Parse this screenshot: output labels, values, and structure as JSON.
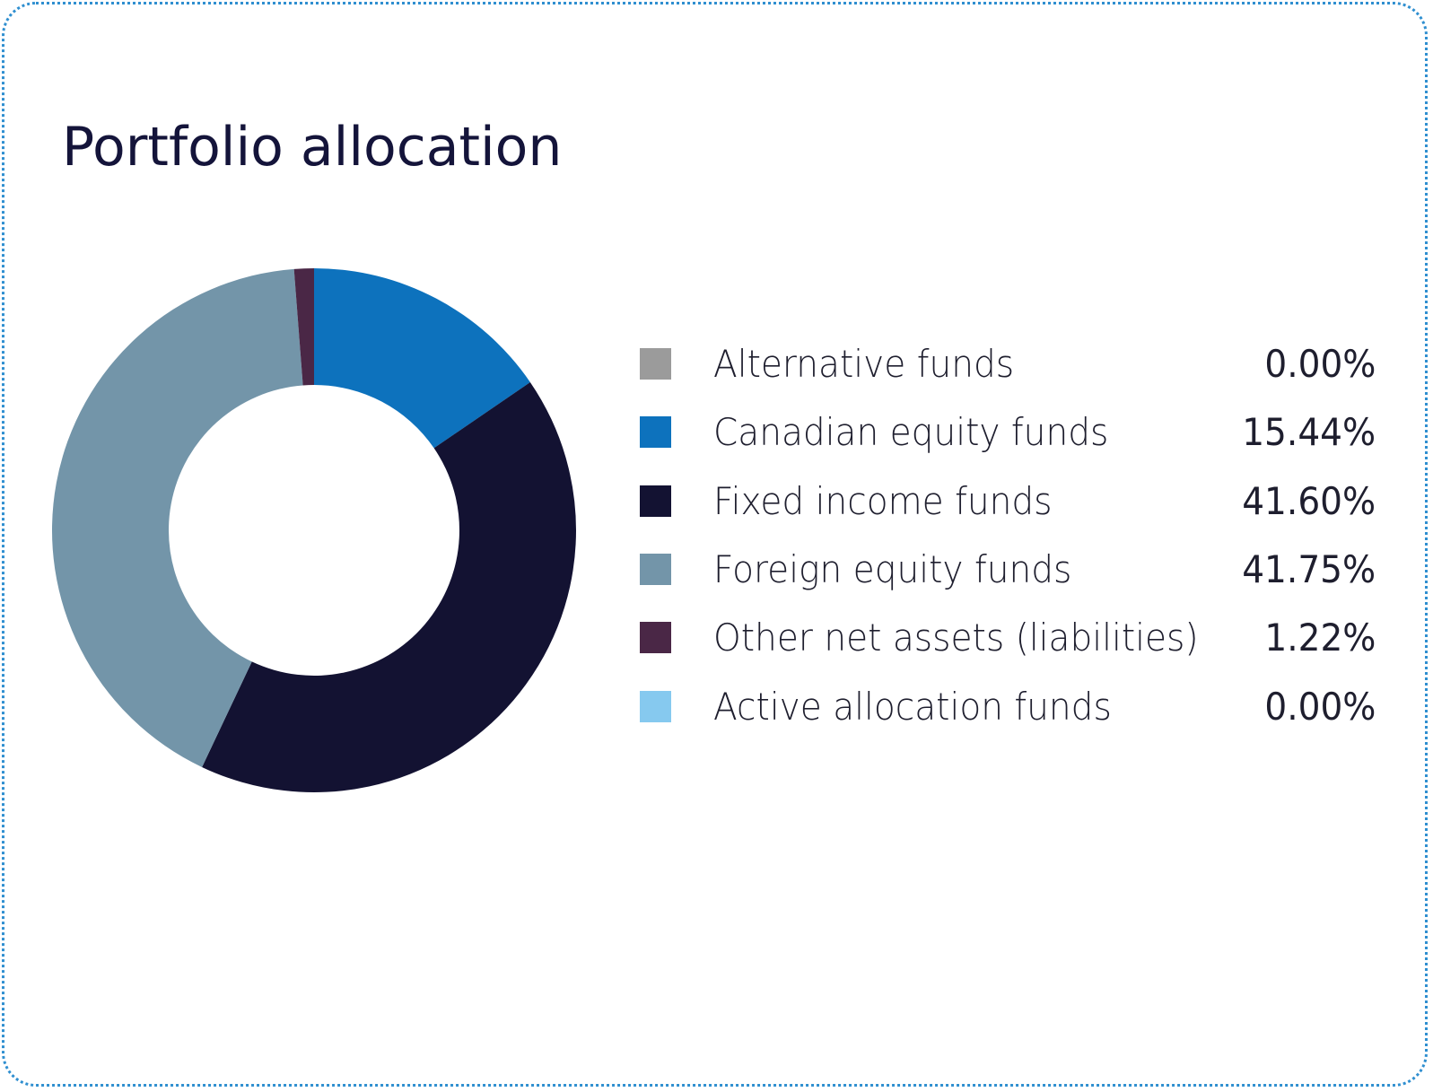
{
  "chart_data": {
    "type": "pie",
    "title": "Portfolio allocation",
    "donut": true,
    "legend_position": "right",
    "slices": [
      {
        "label": "Alternative funds",
        "value": 0.0,
        "display": "0.00%",
        "color": "#9b9b9b"
      },
      {
        "label": "Canadian equity funds",
        "value": 15.44,
        "display": "15.44%",
        "color": "#0d72bd"
      },
      {
        "label": "Fixed income funds",
        "value": 41.6,
        "display": "41.60%",
        "color": "#131232"
      },
      {
        "label": "Foreign equity funds",
        "value": 41.75,
        "display": "41.75%",
        "color": "#7395a9"
      },
      {
        "label": "Other net assets (liabilities)",
        "value": 1.22,
        "display": "1.22%",
        "color": "#4a2746"
      },
      {
        "label": "Active allocation funds",
        "value": 0.0,
        "display": "0.00%",
        "color": "#86c9ef"
      }
    ]
  }
}
